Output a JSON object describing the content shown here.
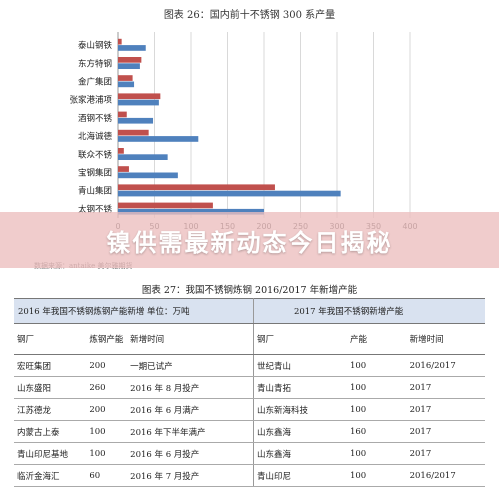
{
  "banner": "镍供需最新动态今日揭秘",
  "figure1": {
    "title": "图表  26：国内前十不锈钢 300 系产量",
    "source": "数据来源：antaike  美尔雅期货"
  },
  "chart_data": {
    "type": "bar",
    "orientation": "horizontal",
    "categories": [
      "泰山钢铁",
      "东方特钢",
      "金广集团",
      "张家港浦项",
      "酒钢不锈",
      "北海诚德",
      "联众不锈",
      "宝钢集团",
      "青山集团",
      "太钢不锈"
    ],
    "series": [
      {
        "name": "",
        "color": "#c0504d",
        "values": [
          5,
          32,
          20,
          58,
          12,
          42,
          8,
          15,
          215,
          130
        ]
      },
      {
        "name": "",
        "color": "#4f81bd",
        "values": [
          38,
          30,
          22,
          56,
          48,
          110,
          68,
          82,
          305,
          200
        ]
      }
    ],
    "xticks": [
      "0",
      "50",
      "100",
      "150",
      "200",
      "250",
      "300",
      "350",
      "400"
    ],
    "xlim": [
      0,
      400
    ],
    "grid": "vertical"
  },
  "figure2": {
    "title": "图表  27：我国不锈钢炼钢 2016/2017 年新增产能",
    "left_header": "2016 年我国不锈钢炼钢产能新增  单位：万吨",
    "right_header": "2017 年我国不锈钢新增产能",
    "columns": [
      "钢厂",
      "炼钢产能",
      "新增时间",
      "钢厂",
      "产能",
      "新增时间"
    ],
    "rows": [
      [
        "宏旺集团",
        "200",
        "一期已试产",
        "世纪青山",
        "100",
        "2016/2017"
      ],
      [
        "山东盛阳",
        "260",
        "2016 年 8 月投产",
        "青山青拓",
        "100",
        "2017"
      ],
      [
        "江苏德龙",
        "200",
        "2016 年 6 月满产",
        "山东新海科技",
        "100",
        "2017"
      ],
      [
        "内蒙古上泰",
        "100",
        "2016 年下半年满产",
        "山东鑫海",
        "160",
        "2017"
      ],
      [
        "青山印尼基地",
        "100",
        "2016 年 6 月投产",
        "山东鑫海",
        "100",
        "2017"
      ],
      [
        "临沂金海汇",
        "60",
        "2016 年 7 月投产",
        "青山印尼",
        "100",
        "2016/2017"
      ]
    ]
  }
}
